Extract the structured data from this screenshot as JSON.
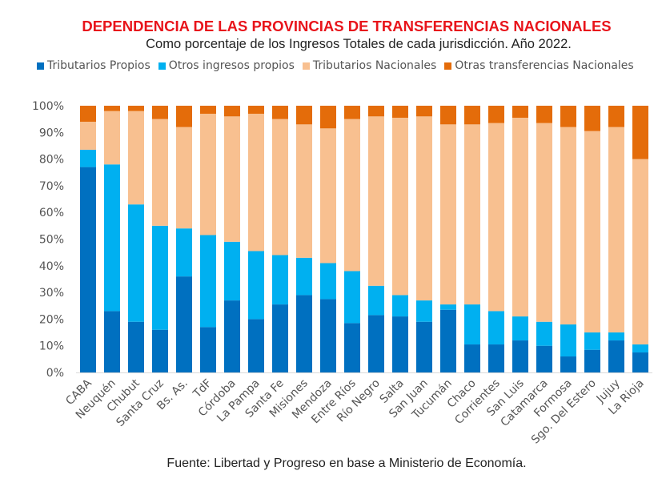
{
  "chart_data": {
    "type": "bar",
    "stacked": true,
    "title": "DEPENDENCIA DE LAS PROVINCIAS DE TRANSFERENCIAS NACIONALES",
    "subtitle": "Como porcentaje de los Ingresos Totales de cada jurisdicción. Año 2022.",
    "source": "Fuente: Libertad y Progreso en base a Ministerio de Economía.",
    "legend_position": "top",
    "grid": false,
    "ylim": [
      0,
      100
    ],
    "yticks": [
      "0%",
      "10%",
      "20%",
      "30%",
      "40%",
      "50%",
      "60%",
      "70%",
      "80%",
      "90%",
      "100%"
    ],
    "categories": [
      "CABA",
      "Neuquén",
      "Chubut",
      "Santa Cruz",
      "Bs. As.",
      "TdF",
      "Córdoba",
      "La Pampa",
      "Santa Fe",
      "Misiones",
      "Mendoza",
      "Entre Ríos",
      "Río Negro",
      "Salta",
      "San Juan",
      "Tucumán",
      "Chaco",
      "Corrientes",
      "San Luis",
      "Catamarca",
      "Formosa",
      "Sgo. Del Estero",
      "Jujuy",
      "La Rioja"
    ],
    "series": [
      {
        "name": "Tributarios Propios",
        "color": "#0070c0",
        "values": [
          77,
          23,
          19,
          16,
          36,
          17,
          27,
          20,
          25.5,
          29,
          27.5,
          18.5,
          21.5,
          21,
          19,
          23.5,
          10.5,
          10.5,
          12,
          10,
          6,
          8.5,
          12,
          7.5
        ]
      },
      {
        "name": "Otros ingresos propios",
        "color": "#00b0f0",
        "values": [
          6.5,
          55,
          44,
          39,
          18,
          34.5,
          22,
          25.5,
          18.5,
          14,
          13.5,
          19.5,
          11,
          8,
          8,
          2,
          15,
          12.5,
          9,
          9,
          12,
          6.5,
          3,
          3
        ]
      },
      {
        "name": "Tributarios Nacionales",
        "color": "#f8c090",
        "values": [
          10.5,
          20,
          35,
          40,
          38,
          45.5,
          47,
          51.5,
          51,
          50,
          50.5,
          57,
          63.5,
          66.5,
          69,
          67.5,
          67.5,
          70.5,
          74.5,
          74.5,
          74,
          75.5,
          77,
          69.5
        ]
      },
      {
        "name": "Otras transferencias Nacionales",
        "color": "#e46c0a",
        "values": [
          6,
          2,
          2,
          5,
          8,
          3,
          4,
          3,
          5,
          7,
          8.5,
          5,
          4,
          4.5,
          4,
          7,
          7,
          6.5,
          4.5,
          6.5,
          8,
          9.5,
          8,
          20
        ]
      }
    ]
  }
}
